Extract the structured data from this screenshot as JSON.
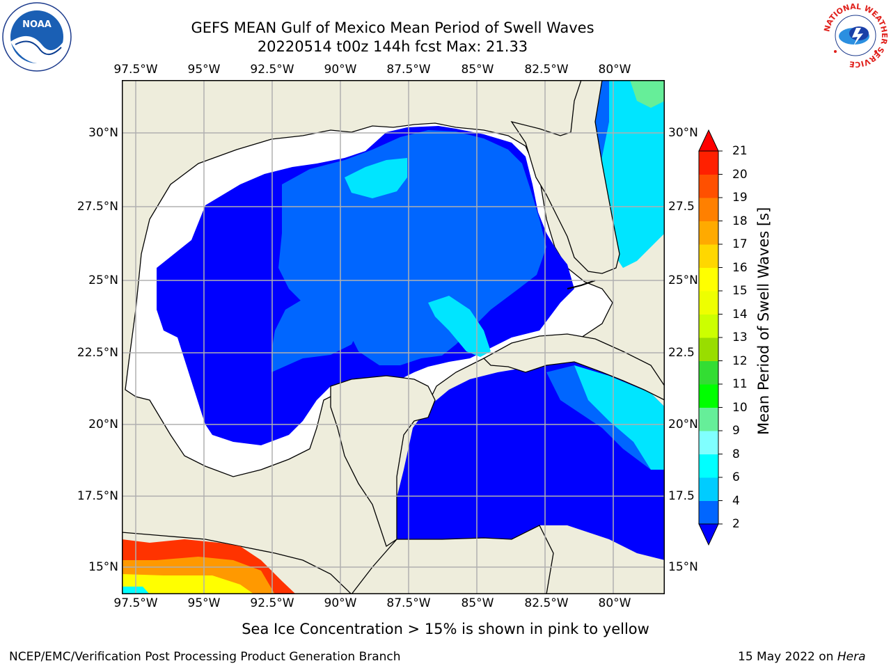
{
  "header": {
    "title_line1": "GEFS MEAN Gulf of Mexico Mean Period of Swell Waves",
    "title_line2": "20220514 t00z 144h fcst   Max: 21.33"
  },
  "logos": {
    "left_logo_text": "NOAA",
    "right_logo_text": "NATIONAL WEATHER SERVICE"
  },
  "map": {
    "lon_labels": [
      "97.5°W",
      "95°W",
      "92.5°W",
      "90°W",
      "87.5°W",
      "85°W",
      "82.5°W",
      "80°W"
    ],
    "lat_labels_left": [
      "30°N",
      "27.5°N",
      "25°N",
      "22.5°N",
      "20°N",
      "17.5°N",
      "15°N"
    ],
    "lat_labels_right": [
      "30°N",
      "27.5",
      "25°N",
      "22.5",
      "20°N",
      "17.5",
      "15°N"
    ],
    "lon_range": [
      -98,
      -79
    ],
    "lat_range": [
      14,
      32
    ],
    "colors": {
      "land": "#EEEDDC",
      "ocean_low": "#0000FF",
      "ocean_mid": "#0066FF",
      "ocean_cyan": "#00E5FF",
      "gridline": "#B0B0B0"
    }
  },
  "colorbar": {
    "title": "Mean Period of Swell Waves [s]",
    "ticks": [
      "2",
      "4",
      "6",
      "8",
      "9",
      "10",
      "11",
      "12",
      "13",
      "14",
      "15",
      "16",
      "17",
      "18",
      "19",
      "20",
      "21"
    ],
    "colors": [
      "#0000FF",
      "#0066FF",
      "#00CCFF",
      "#00FFFF",
      "#80FFFF",
      "#66EE99",
      "#00FF00",
      "#33DD33",
      "#99DD00",
      "#CCFF00",
      "#EEFF00",
      "#FFFF00",
      "#FFD700",
      "#FFAA00",
      "#FF8000",
      "#FF5000",
      "#FF2000",
      "#FF0000"
    ]
  },
  "notes": {
    "sea_ice": "Sea Ice Concentration > 15% is shown in pink to yellow"
  },
  "footer": {
    "left": "NCEP/EMC/Verification Post Processing Product Generation Branch",
    "right_prefix": "15 May 2022 on ",
    "right_host": "Hera"
  }
}
